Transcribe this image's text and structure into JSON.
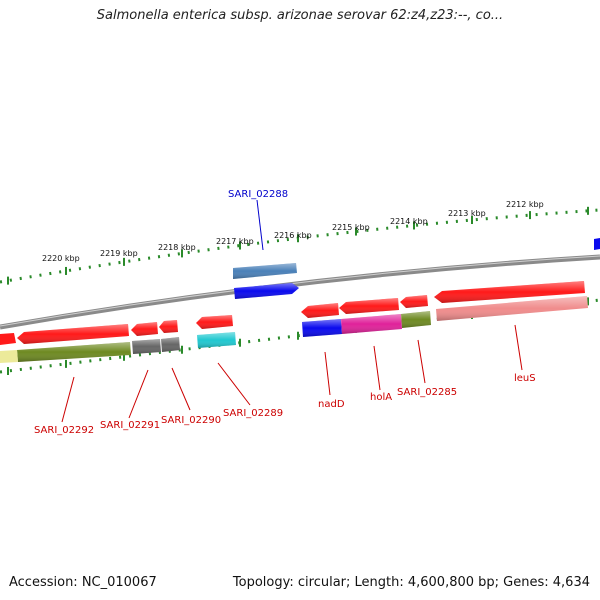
{
  "title": "Salmonella enterica subsp. arizonae serovar 62:z4,z23:--, co...",
  "map": {
    "scale_labels": [
      "2220 kbp",
      "2219 kbp",
      "2218 kbp",
      "2217 kbp",
      "2216 kbp",
      "2215 kbp",
      "2214 kbp",
      "2213 kbp",
      "2212 kbp"
    ],
    "gene_labels": [
      "SARI_02288",
      "SARI_02292",
      "SARI_02291",
      "SARI_02290",
      "SARI_02289",
      "nadD",
      "holA",
      "SARI_02285",
      "leuS"
    ],
    "colors": {
      "backbone": "#8a8a8a",
      "tick": "#2a8a2a",
      "cds_red": "#ff1a1a",
      "steel_blue": "#4a80b8",
      "blue": "#0a0aee",
      "olive": "#6e8a22",
      "magenta": "#e0229a",
      "pink": "#f08c8c",
      "gray": "#666666",
      "cyan": "#20c8d0",
      "pale_yellow": "#ecea9a",
      "label_red": "#cc0000",
      "label_blue": "#0000cc"
    }
  },
  "footer": {
    "accession": "Accession: NC_010067",
    "stats": "Topology: circular; Length: 4,600,800 bp; Genes: 4,634"
  }
}
